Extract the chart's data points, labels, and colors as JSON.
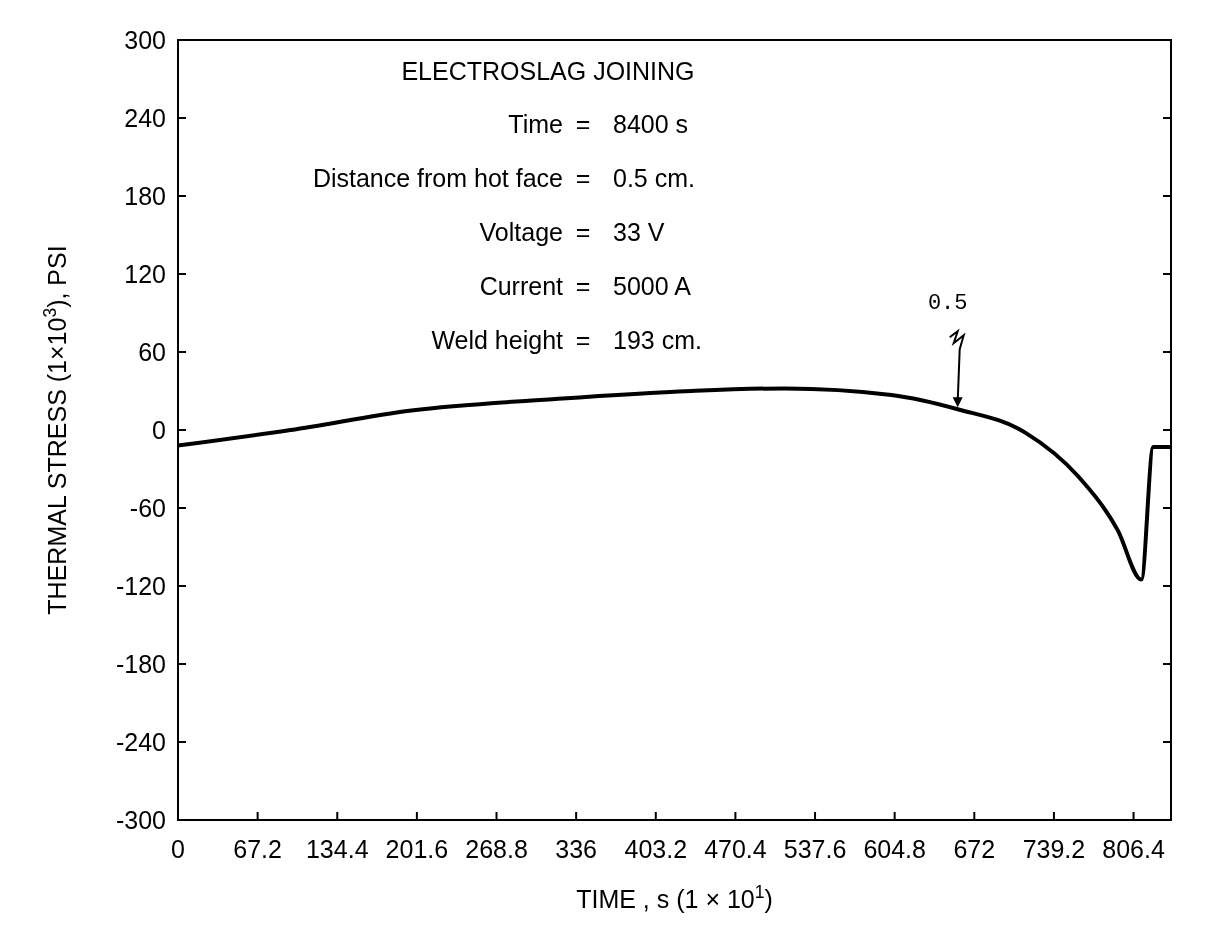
{
  "chart_data": {
    "type": "line",
    "title": "ELECTROSLAG JOINING",
    "xlabel": "TIME , s (1 × 10$^{1}$)",
    "ylabel": "THERMAL STRESS (1×10$^{3}$), PSI",
    "x": [
      0,
      95,
      197,
      321,
      433,
      512,
      602,
      658,
      715,
      760,
      793,
      813,
      823,
      838
    ],
    "series": [
      {
        "color": "#000000",
        "values": [
          -12,
          0,
          15,
          24,
          30,
          32,
          27,
          16,
          -2,
          -36,
          -77,
          -115,
          -13,
          -13
        ]
      }
    ],
    "xlim": [
      0,
      838
    ],
    "ylim": [
      -300,
      300
    ],
    "xticks": [
      0,
      67.2,
      134.4,
      201.6,
      268.8,
      336,
      403.2,
      470.4,
      537.6,
      604.8,
      672,
      739.2,
      806.4
    ],
    "yticks": [
      -300,
      -240,
      -180,
      -120,
      -60,
      0,
      60,
      120,
      180,
      240,
      300
    ],
    "grid": false,
    "marker": "none",
    "line_style": "solid",
    "annotations": [
      "Time = 8400 s",
      "Distance from hot face = 0.5 cm.",
      "Voltage = 33 V",
      "Current = 5000 A",
      "Weld height = 193 cm.",
      {
        "text": "0.5",
        "x": 658,
        "y": 16
      }
    ]
  }
}
